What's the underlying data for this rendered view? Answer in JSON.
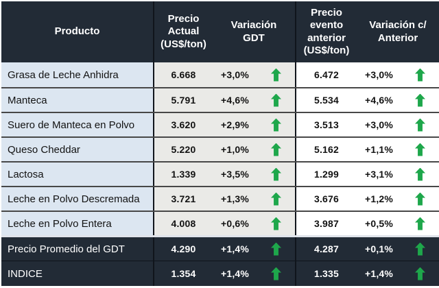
{
  "header": {
    "producto": "Producto",
    "precio_actual": "Precio Actual (US$/ton)",
    "variacion_gdt": "Variación GDT",
    "precio_evento": "Precio evento anterior (US$/ton)",
    "variacion_anterior": "Variación c/ Anterior"
  },
  "rows": [
    {
      "producto": "Grasa de Leche Anhidra",
      "precio_actual": "6.668",
      "variacion_gdt": "+3,0%",
      "tendencia_gdt": "up",
      "precio_anterior": "6.472",
      "variacion_anterior": "+3,0%",
      "tendencia_anterior": "up"
    },
    {
      "producto": "Manteca",
      "precio_actual": "5.791",
      "variacion_gdt": "+4,6%",
      "tendencia_gdt": "up",
      "precio_anterior": "5.534",
      "variacion_anterior": "+4,6%",
      "tendencia_anterior": "up"
    },
    {
      "producto": "Suero de Manteca en Polvo",
      "precio_actual": "3.620",
      "variacion_gdt": "+2,9%",
      "tendencia_gdt": "up",
      "precio_anterior": "3.513",
      "variacion_anterior": "+3,0%",
      "tendencia_anterior": "up"
    },
    {
      "producto": "Queso Cheddar",
      "precio_actual": "5.220",
      "variacion_gdt": "+1,0%",
      "tendencia_gdt": "up",
      "precio_anterior": "5.162",
      "variacion_anterior": "+1,1%",
      "tendencia_anterior": "up"
    },
    {
      "producto": "Lactosa",
      "precio_actual": "1.339",
      "variacion_gdt": "+3,5%",
      "tendencia_gdt": "up",
      "precio_anterior": "1.299",
      "variacion_anterior": "+3,1%",
      "tendencia_anterior": "up"
    },
    {
      "producto": "Leche en Polvo Descremada",
      "precio_actual": "3.721",
      "variacion_gdt": "+1,3%",
      "tendencia_gdt": "up",
      "precio_anterior": "3.676",
      "variacion_anterior": "+1,2%",
      "tendencia_anterior": "up"
    },
    {
      "producto": "Leche en Polvo Entera",
      "precio_actual": "4.008",
      "variacion_gdt": "+0,6%",
      "tendencia_gdt": "up",
      "precio_anterior": "3.987",
      "variacion_anterior": "+0,5%",
      "tendencia_anterior": "up"
    }
  ],
  "summary_rows": [
    {
      "producto": "Precio Promedio del GDT",
      "precio_actual": "4.290",
      "variacion_gdt": "+1,4%",
      "tendencia_gdt": "up",
      "precio_anterior": "4.287",
      "variacion_anterior": "+0,1%",
      "tendencia_anterior": "up"
    },
    {
      "producto": "INDICE",
      "precio_actual": "1.354",
      "variacion_gdt": "+1,4%",
      "tendencia_gdt": "up",
      "precio_anterior": "1.335",
      "variacion_anterior": "+1,4%",
      "tendencia_anterior": "up"
    }
  ],
  "icons": {
    "trend_up": "green-up-arrow"
  },
  "colors": {
    "header_bg": "#222B36",
    "product_bg": "#DCE6F1",
    "gray_bg": "#EAEAE7",
    "white_bg": "#FFFFFF",
    "green": "#1EA74B",
    "sep": "#474747"
  },
  "chart_data": {
    "type": "table",
    "columns": [
      "Producto",
      "Precio Actual (US$/ton)",
      "Variación GDT",
      "Precio evento anterior (US$/ton)",
      "Variación c/ Anterior"
    ],
    "rows": [
      [
        "Grasa de Leche Anhidra",
        "6.668",
        "+3,0%",
        "up",
        "6.472",
        "+3,0%",
        "up"
      ],
      [
        "Manteca",
        "5.791",
        "+4,6%",
        "up",
        "5.534",
        "+4,6%",
        "up"
      ],
      [
        "Suero de Manteca en Polvo",
        "3.620",
        "+2,9%",
        "up",
        "3.513",
        "+3,0%",
        "up"
      ],
      [
        "Queso Cheddar",
        "5.220",
        "+1,0%",
        "up",
        "5.162",
        "+1,1%",
        "up"
      ],
      [
        "Lactosa",
        "1.339",
        "+3,5%",
        "up",
        "1.299",
        "+3,1%",
        "up"
      ],
      [
        "Leche en Polvo Descremada",
        "3.721",
        "+1,3%",
        "up",
        "3.676",
        "+1,2%",
        "up"
      ],
      [
        "Leche en Polvo Entera",
        "4.008",
        "+0,6%",
        "up",
        "3.987",
        "+0,5%",
        "up"
      ],
      [
        "Precio Promedio del GDT",
        "4.290",
        "+1,4%",
        "up",
        "4.287",
        "+0,1%",
        "up"
      ],
      [
        "INDICE",
        "1.354",
        "+1,4%",
        "up",
        "1.335",
        "+1,4%",
        "up"
      ]
    ]
  }
}
